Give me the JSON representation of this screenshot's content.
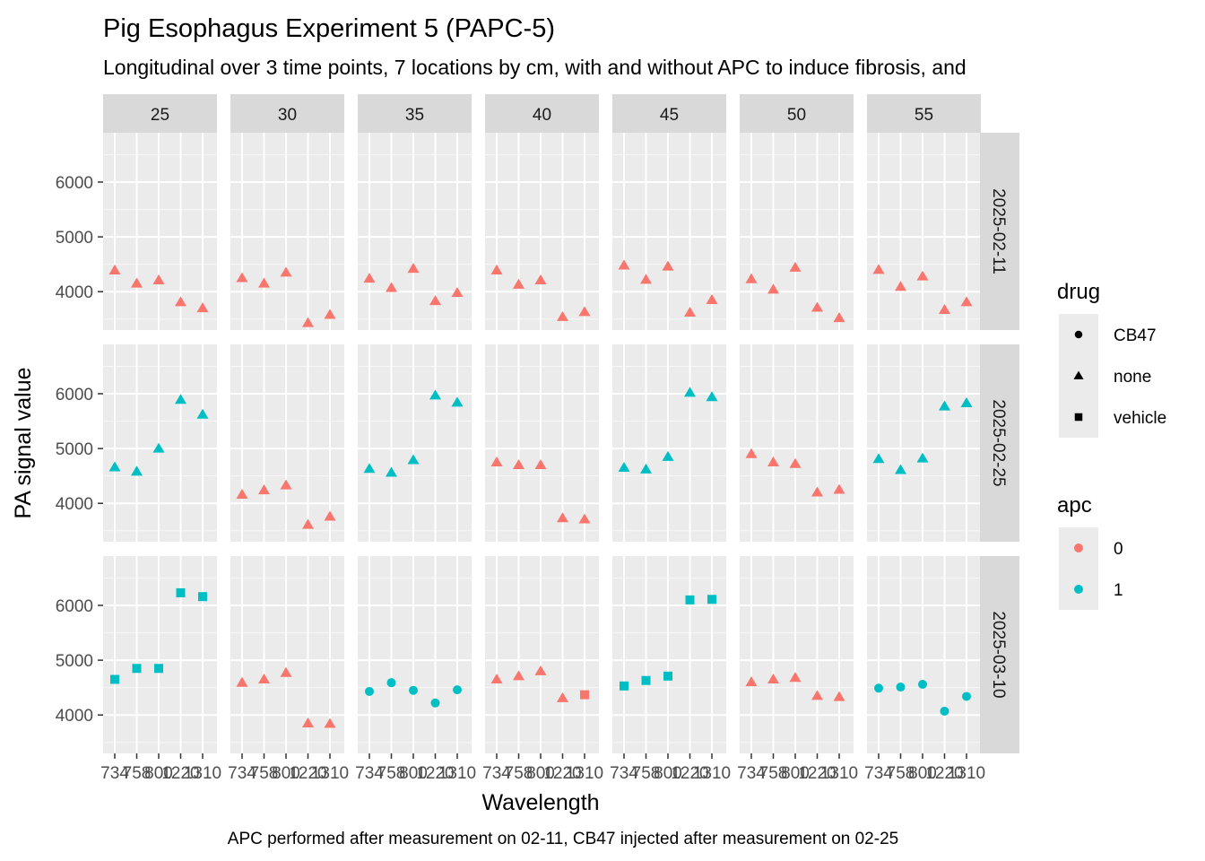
{
  "chart_data": {
    "type": "scatter",
    "title": "Pig Esophagus Experiment 5 (PAPC-5)",
    "subtitle": "Longitudinal over 3 time points, 7 locations by cm, with and without APC to induce fibrosis, and",
    "caption": "APC performed after measurement on 02-11, CB47 injected after measurement on 02-25",
    "xlabel": "Wavelength",
    "ylabel": "PA signal value",
    "x_tick_labels": [
      "734",
      "758",
      "800",
      "1220",
      "1310"
    ],
    "y_ticks": [
      4000,
      5000,
      6000
    ],
    "ylim": [
      3300,
      6900
    ],
    "grid": true,
    "facet_cols": [
      "25",
      "30",
      "35",
      "40",
      "45",
      "50",
      "55"
    ],
    "facet_rows": [
      "2025-02-11",
      "2025-02-25",
      "2025-03-10"
    ],
    "legend": {
      "placement": "right",
      "drug": {
        "title": "drug",
        "items": [
          "CB47",
          "none",
          "vehicle"
        ],
        "shapes": [
          "circle",
          "triangle",
          "square"
        ]
      },
      "apc": {
        "title": "apc",
        "items": [
          "0",
          "1"
        ],
        "colors": [
          "#F8766D",
          "#00BFC4"
        ]
      }
    },
    "panels": [
      {
        "row": "2025-02-11",
        "col": "25",
        "apc": "0",
        "drug": "none",
        "values": [
          4390,
          4150,
          4210,
          3810,
          3700
        ]
      },
      {
        "row": "2025-02-11",
        "col": "30",
        "apc": "0",
        "drug": "none",
        "values": [
          4250,
          4150,
          4350,
          3430,
          3580
        ]
      },
      {
        "row": "2025-02-11",
        "col": "35",
        "apc": "0",
        "drug": "none",
        "values": [
          4240,
          4070,
          4420,
          3830,
          3980
        ]
      },
      {
        "row": "2025-02-11",
        "col": "40",
        "apc": "0",
        "drug": "none",
        "values": [
          4390,
          4130,
          4210,
          3540,
          3630
        ]
      },
      {
        "row": "2025-02-11",
        "col": "45",
        "apc": "0",
        "drug": "none",
        "values": [
          4480,
          4220,
          4460,
          3620,
          3850
        ]
      },
      {
        "row": "2025-02-11",
        "col": "50",
        "apc": "0",
        "drug": "none",
        "values": [
          4230,
          4040,
          4440,
          3710,
          3520
        ]
      },
      {
        "row": "2025-02-11",
        "col": "55",
        "apc": "0",
        "drug": "none",
        "values": [
          4400,
          4090,
          4280,
          3670,
          3810
        ]
      },
      {
        "row": "2025-02-25",
        "col": "25",
        "apc": "1",
        "drug": "none",
        "values": [
          4660,
          4580,
          5000,
          5890,
          5620
        ]
      },
      {
        "row": "2025-02-25",
        "col": "30",
        "apc": "0",
        "drug": "none",
        "values": [
          4160,
          4240,
          4330,
          3610,
          3760
        ]
      },
      {
        "row": "2025-02-25",
        "col": "35",
        "apc": "1",
        "drug": "none",
        "values": [
          4630,
          4560,
          4790,
          5970,
          5840
        ]
      },
      {
        "row": "2025-02-25",
        "col": "40",
        "apc": "0",
        "drug": "none",
        "values": [
          4750,
          4700,
          4700,
          3730,
          3710
        ]
      },
      {
        "row": "2025-02-25",
        "col": "45",
        "apc": "1",
        "drug": "none",
        "values": [
          4650,
          4620,
          4850,
          6020,
          5940
        ]
      },
      {
        "row": "2025-02-25",
        "col": "50",
        "apc": "0",
        "drug": "none",
        "values": [
          4900,
          4750,
          4720,
          4200,
          4250
        ]
      },
      {
        "row": "2025-02-25",
        "col": "55",
        "apc": "1",
        "drug": "none",
        "values": [
          4810,
          4610,
          4820,
          5770,
          5830
        ]
      },
      {
        "row": "2025-03-10",
        "col": "25",
        "apc": "1",
        "drug": "vehicle",
        "values": [
          4650,
          4850,
          4850,
          6230,
          6160
        ]
      },
      {
        "row": "2025-03-10",
        "col": "30",
        "apc": "0",
        "drug": "none",
        "values": [
          4590,
          4650,
          4770,
          3850,
          3840
        ]
      },
      {
        "row": "2025-03-10",
        "col": "35",
        "apc": "1",
        "drug": "CB47",
        "values": [
          4430,
          4590,
          4450,
          4220,
          4460
        ]
      },
      {
        "row": "2025-03-10",
        "col": "40",
        "apc": "0",
        "drug": "none",
        "values": [
          4650,
          4710,
          4800,
          4310,
          null
        ]
      },
      {
        "row": "2025-03-10",
        "col": "40",
        "apc": "0",
        "drug": "vehicle",
        "values": [
          null,
          null,
          null,
          null,
          4370
        ]
      },
      {
        "row": "2025-03-10",
        "col": "45",
        "apc": "1",
        "drug": "vehicle",
        "values": [
          4530,
          4630,
          4710,
          6100,
          6110
        ]
      },
      {
        "row": "2025-03-10",
        "col": "50",
        "apc": "0",
        "drug": "none",
        "values": [
          4600,
          4650,
          4680,
          4350,
          4330
        ]
      },
      {
        "row": "2025-03-10",
        "col": "55",
        "apc": "1",
        "drug": "CB47",
        "values": [
          4490,
          4510,
          4560,
          4070,
          4340
        ]
      }
    ]
  }
}
